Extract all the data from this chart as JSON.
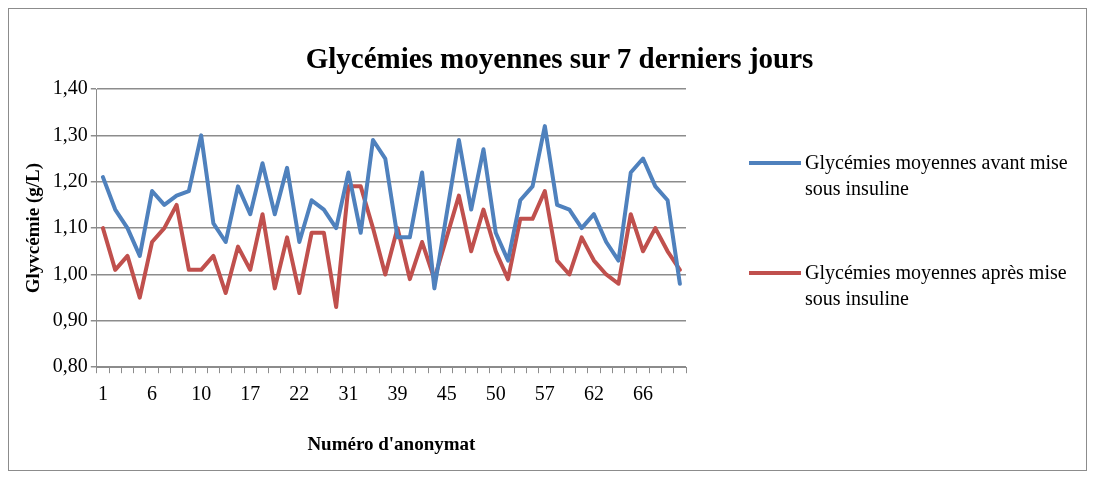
{
  "chart_data": {
    "type": "line",
    "title": "Glycémies moyennes sur 7 derniers jours",
    "xlabel": "Numéro d'anonymat",
    "ylabel": "Glyvcémie (g/L)",
    "categories": [
      "1",
      null,
      null,
      null,
      "6",
      null,
      null,
      null,
      "10",
      null,
      null,
      null,
      "17",
      null,
      null,
      null,
      "22",
      null,
      null,
      null,
      "31",
      null,
      null,
      null,
      "39",
      null,
      null,
      null,
      "45",
      null,
      null,
      null,
      "50",
      null,
      null,
      null,
      "57",
      null,
      null,
      null,
      "62",
      null,
      null,
      null,
      "66",
      null,
      null,
      null
    ],
    "series": [
      {
        "name": "Glycémies moyennes avant mise sous insuline",
        "color": "#4f81bd",
        "values": [
          1.21,
          1.14,
          1.1,
          1.04,
          1.18,
          1.15,
          1.17,
          1.18,
          1.3,
          1.11,
          1.07,
          1.19,
          1.13,
          1.24,
          1.13,
          1.23,
          1.07,
          1.16,
          1.14,
          1.1,
          1.22,
          1.09,
          1.29,
          1.25,
          1.08,
          1.08,
          1.22,
          0.97,
          1.13,
          1.29,
          1.14,
          1.27,
          1.09,
          1.03,
          1.16,
          1.19,
          1.32,
          1.15,
          1.14,
          1.1,
          1.13,
          1.07,
          1.03,
          1.22,
          1.25,
          1.19,
          1.16,
          0.98
        ]
      },
      {
        "name": "Glycémies moyennes après mise sous insuline",
        "color": "#c0504d",
        "values": [
          1.1,
          1.01,
          1.04,
          0.95,
          1.07,
          1.1,
          1.15,
          1.01,
          1.01,
          1.04,
          0.96,
          1.06,
          1.01,
          1.13,
          0.97,
          1.08,
          0.96,
          1.09,
          1.09,
          0.93,
          1.19,
          1.19,
          1.1,
          1.0,
          1.1,
          0.99,
          1.07,
          0.99,
          1.08,
          1.17,
          1.05,
          1.14,
          1.05,
          0.99,
          1.12,
          1.12,
          1.18,
          1.03,
          1.0,
          1.08,
          1.03,
          1.0,
          0.98,
          1.13,
          1.05,
          1.1,
          1.05,
          1.01
        ]
      }
    ],
    "ylim": [
      0.8,
      1.4
    ],
    "yticks": [
      {
        "value": 0.8,
        "label": "0,80"
      },
      {
        "value": 0.9,
        "label": "0,90"
      },
      {
        "value": 1.0,
        "label": "1,00"
      },
      {
        "value": 1.1,
        "label": "1,10"
      },
      {
        "value": 1.2,
        "label": "1,20"
      },
      {
        "value": 1.3,
        "label": "1,30"
      },
      {
        "value": 1.4,
        "label": "1,40"
      }
    ],
    "grid": "y",
    "legend": "right",
    "marker": "none",
    "line_style": "solid"
  }
}
